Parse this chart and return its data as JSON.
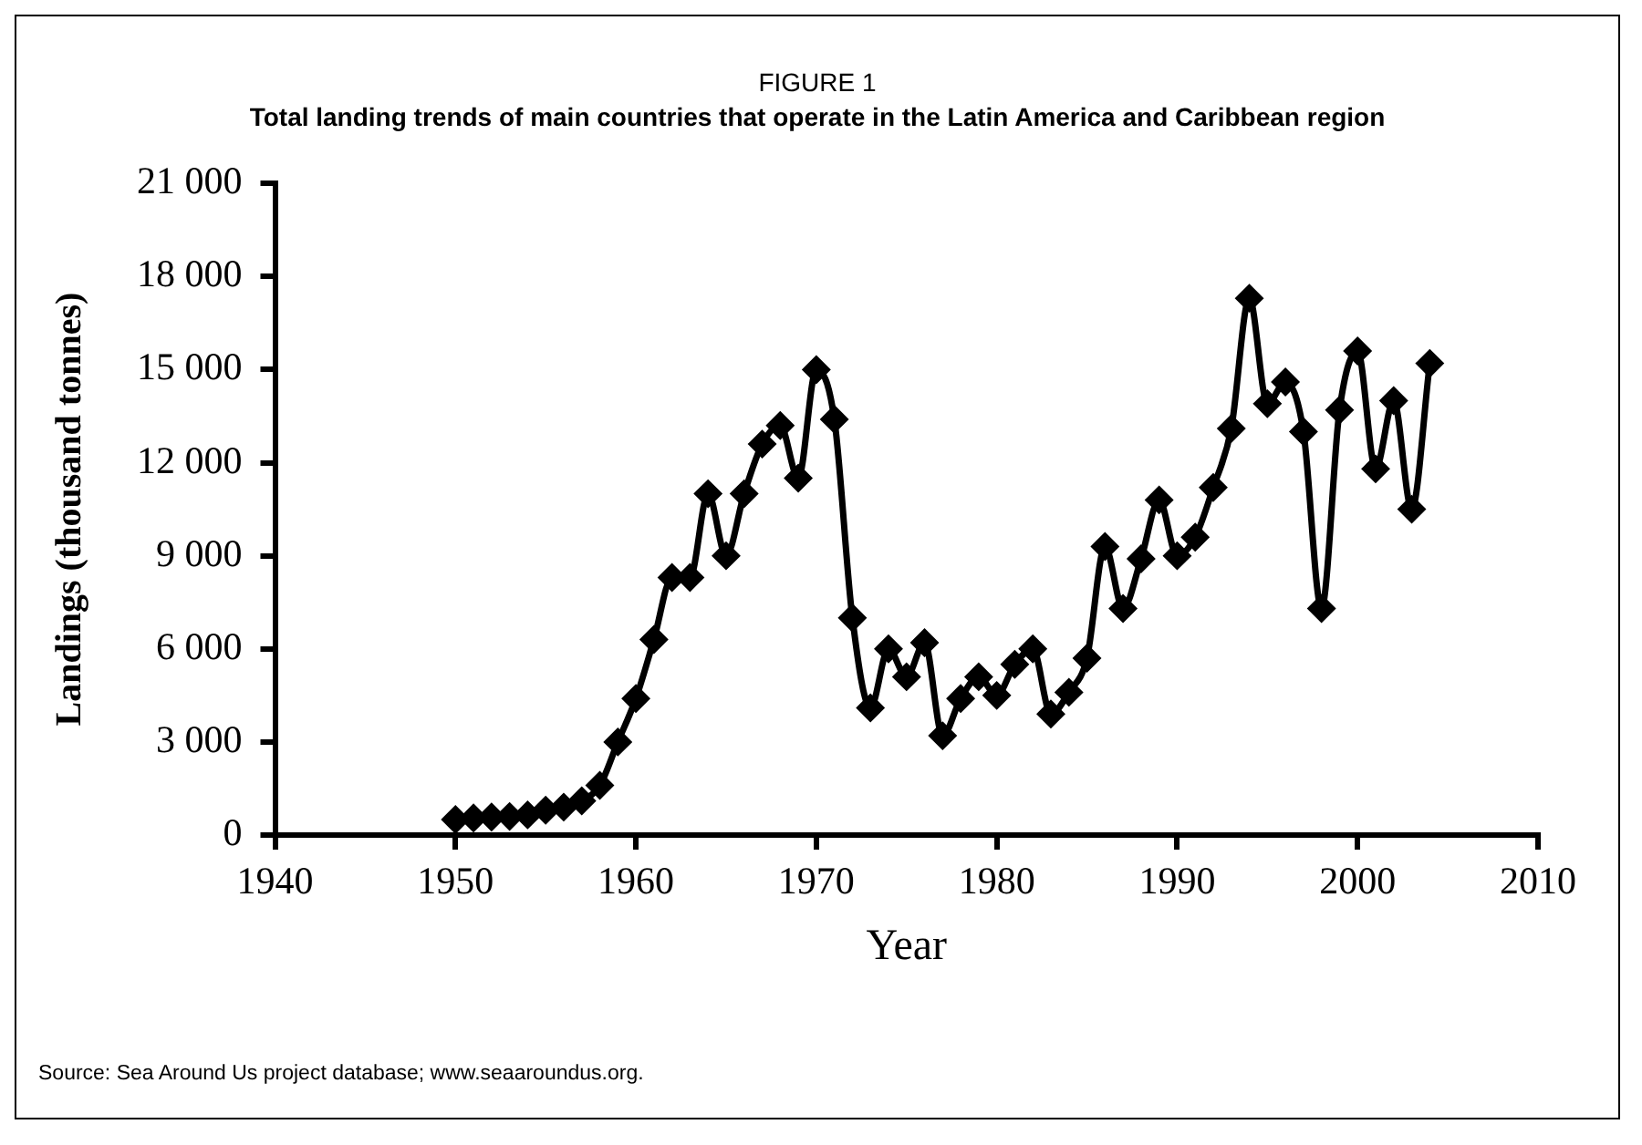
{
  "chart_data": {
    "type": "line",
    "title": "FIGURE 1",
    "subtitle": "Total landing trends of main countries that operate in the Latin America and Caribbean region",
    "xlabel": "Year",
    "ylabel": "Landings (thousand tonnes)",
    "x": [
      1950,
      1951,
      1952,
      1953,
      1954,
      1955,
      1956,
      1957,
      1958,
      1959,
      1960,
      1961,
      1962,
      1963,
      1964,
      1965,
      1966,
      1967,
      1968,
      1969,
      1970,
      1971,
      1972,
      1973,
      1974,
      1975,
      1976,
      1977,
      1978,
      1979,
      1980,
      1981,
      1982,
      1983,
      1984,
      1985,
      1986,
      1987,
      1988,
      1989,
      1990,
      1991,
      1992,
      1993,
      1994,
      1995,
      1996,
      1997,
      1998,
      1999,
      2000,
      2001,
      2002,
      2003,
      2004
    ],
    "series": [
      {
        "color": "#000000",
        "values": [
          500,
          550,
          580,
          600,
          650,
          800,
          900,
          1100,
          1600,
          3000,
          4400,
          6300,
          8300,
          8300,
          11000,
          9000,
          11000,
          12600,
          13200,
          11500,
          15000,
          13400,
          7000,
          4100,
          6000,
          5100,
          6200,
          3200,
          4400,
          5100,
          4500,
          5500,
          6000,
          3900,
          4600,
          5700,
          9300,
          7300,
          8900,
          10800,
          9000,
          9600,
          11200,
          13100,
          17300,
          13900,
          14600,
          13000,
          7300,
          13700,
          15600,
          11800,
          14000,
          10500,
          15200
        ]
      }
    ],
    "xlim": [
      1940,
      2010
    ],
    "xticks": [
      1940,
      1950,
      1960,
      1970,
      1980,
      1990,
      2000,
      2010
    ],
    "ylim": [
      0,
      21000
    ],
    "yticks": [
      {
        "value": 0,
        "label": "0"
      },
      {
        "value": 3000,
        "label": "3 000"
      },
      {
        "value": 6000,
        "label": "6 000"
      },
      {
        "value": 9000,
        "label": "9 000"
      },
      {
        "value": 12000,
        "label": "12 000"
      },
      {
        "value": 15000,
        "label": "15 000"
      },
      {
        "value": 18000,
        "label": "18 000"
      },
      {
        "value": 21000,
        "label": "21 000"
      }
    ],
    "grid": false,
    "legend": false,
    "marker": "diamond",
    "line_style": "solid",
    "annotations": [
      "Source: Sea Around Us project database; www.seaaroundus.org."
    ]
  }
}
